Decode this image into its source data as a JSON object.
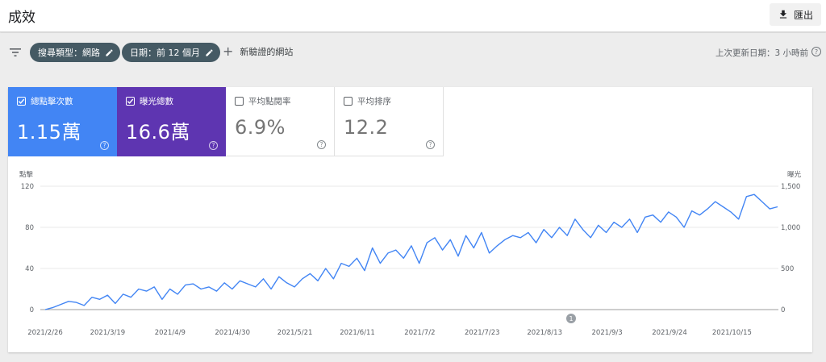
{
  "header": {
    "title": "成效",
    "export_label": "匯出"
  },
  "filters": {
    "chips": [
      {
        "label": "搜尋類型：網路"
      },
      {
        "label": "日期：前 12 個月"
      }
    ],
    "add_label": "新驗證的網站",
    "last_updated": "上次更新日期：3 小時前"
  },
  "metrics": [
    {
      "label": "總點擊次數",
      "value": "1.15萬",
      "checked": true,
      "color": "#4285f4"
    },
    {
      "label": "曝光總數",
      "value": "16.6萬",
      "checked": true,
      "color": "#5e35b1"
    },
    {
      "label": "平均點閱率",
      "value": "6.9%",
      "checked": false
    },
    {
      "label": "平均排序",
      "value": "12.2",
      "checked": false
    }
  ],
  "chart_data": {
    "type": "line",
    "left_axis_label": "點擊",
    "right_axis_label": "曝光",
    "left_ticks": [
      "120",
      "80",
      "40",
      "0"
    ],
    "right_ticks": [
      "1,500",
      "1,000",
      "500",
      "0"
    ],
    "ylim_left": [
      0,
      120
    ],
    "ylim_right": [
      0,
      1500
    ],
    "x_labels": [
      "2021/2/26",
      "2021/3/19",
      "2021/4/9",
      "2021/4/30",
      "2021/5/21",
      "2021/6/11",
      "2021/7/2",
      "2021/7/23",
      "2021/8/13",
      "2021/9/3",
      "2021/9/24",
      "2021/10/15"
    ],
    "annotation": "1",
    "series": [
      {
        "name": "總點擊次數",
        "axis": "left",
        "color": "#4285f4",
        "values": [
          0,
          2,
          5,
          8,
          7,
          4,
          12,
          10,
          14,
          6,
          15,
          12,
          20,
          18,
          22,
          10,
          20,
          15,
          24,
          25,
          20,
          22,
          18,
          26,
          20,
          28,
          25,
          22,
          30,
          20,
          32,
          26,
          22,
          30,
          35,
          28,
          40,
          30,
          45,
          42,
          50,
          38,
          60,
          45,
          55,
          58,
          50,
          62,
          45,
          65,
          70,
          58,
          68,
          52,
          72,
          60,
          75,
          55,
          62,
          68,
          72,
          70,
          75,
          65,
          78,
          70,
          80,
          72,
          88,
          78,
          70,
          82,
          75,
          85,
          80,
          88,
          75,
          90,
          92,
          85,
          95,
          90,
          80,
          96,
          92,
          98,
          105,
          100,
          95,
          88,
          110,
          112,
          105,
          98,
          100
        ]
      }
    ]
  }
}
